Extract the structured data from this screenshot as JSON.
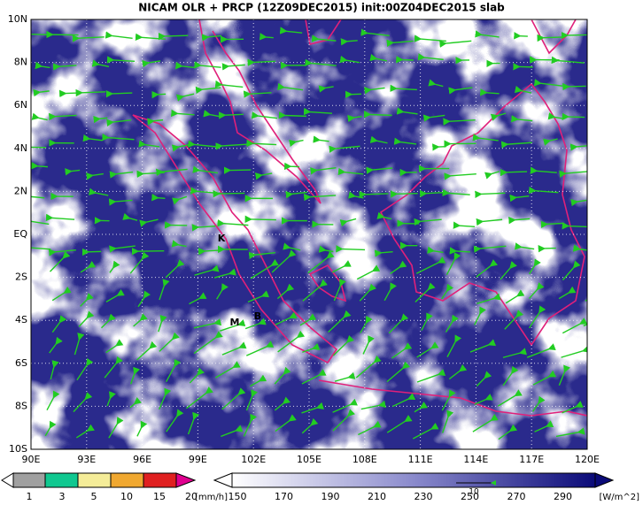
{
  "title": "NICAM OLR + PRCP (12Z09DEC2015) init:00Z04DEC2015 slab",
  "lat_labels": [
    "10N",
    "8N",
    "6N",
    "4N",
    "2N",
    "EQ",
    "2S",
    "4S",
    "6S",
    "8S",
    "10S"
  ],
  "lon_labels": [
    "90E",
    "93E",
    "96E",
    "99E",
    "102E",
    "105E",
    "108E",
    "111E",
    "114E",
    "117E",
    "120E"
  ],
  "site_labels": [
    "K",
    "M",
    "B"
  ],
  "precip_legend": {
    "ticks": [
      "1",
      "3",
      "5",
      "10",
      "15",
      "20"
    ],
    "unit": "[mm/h]"
  },
  "olr_legend": {
    "ticks": [
      "150",
      "170",
      "190",
      "210",
      "230",
      "250",
      "270",
      "290"
    ],
    "unit": "[W/m^2]"
  },
  "vector_reference": "10"
}
